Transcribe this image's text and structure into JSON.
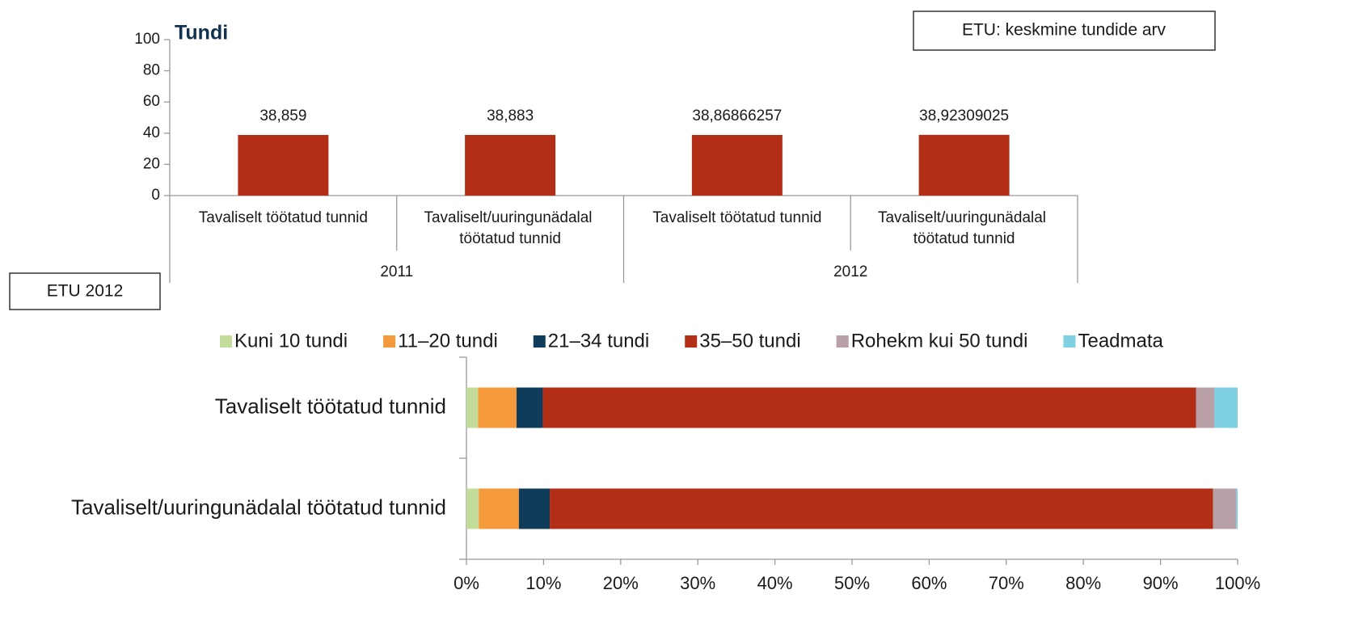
{
  "chart_data": [
    {
      "type": "bar",
      "annotation": "ETU: keskmine tundide arv",
      "ylabel": "Tundi",
      "categories": [
        "Tavaliselt töötatud tunnid",
        "Tavaliselt/uuringunädalal töötatud tunnid",
        "Tavaliselt töötatud tunnid",
        "Tavaliselt/uuringunädalal töötatud tunnid"
      ],
      "groups": [
        "2011",
        "2012"
      ],
      "values": [
        38.859,
        38.883,
        38.86866257,
        38.92309025
      ],
      "value_labels": [
        "38,859",
        "38,883",
        "38,86866257",
        "38,92309025"
      ],
      "color": "#b22e17",
      "ylim": [
        0,
        100
      ],
      "yticks": [
        0,
        20,
        40,
        60,
        80,
        100
      ]
    },
    {
      "type": "stacked-barh",
      "annotation": "ETU 2012",
      "categories": [
        "Tavaliselt töötatud tunnid",
        "Tavaliselt/uuringunädalal töötatud tunnid"
      ],
      "series": [
        {
          "name": "Kuni 10 tundi",
          "color": "#c3dc9a",
          "values": [
            1.5,
            1.6
          ]
        },
        {
          "name": "11–20 tundi",
          "color": "#f59a3a",
          "values": [
            5.0,
            5.2
          ]
        },
        {
          "name": "21–34 tundi",
          "color": "#0e3c5a",
          "values": [
            3.4,
            4.0
          ]
        },
        {
          "name": "35–50 tundi",
          "color": "#b22e17",
          "values": [
            84.7,
            86.0
          ]
        },
        {
          "name": "Rohekm kui 50 tundi",
          "color": "#b9a0a6",
          "values": [
            2.4,
            3.0
          ]
        },
        {
          "name": "Teadmata",
          "color": "#7fd0e0",
          "values": [
            3.0,
            0.2
          ]
        }
      ],
      "xlim": [
        0,
        100
      ],
      "xticks": [
        {
          "value": 0,
          "label": "0%"
        },
        {
          "value": 10,
          "label": "10%"
        },
        {
          "value": 20,
          "label": "20%"
        },
        {
          "value": 30,
          "label": "30%"
        },
        {
          "value": 40,
          "label": "40%"
        },
        {
          "value": 50,
          "label": "50%"
        },
        {
          "value": 60,
          "label": "60%"
        },
        {
          "value": 70,
          "label": "70%"
        },
        {
          "value": 80,
          "label": "80%"
        },
        {
          "value": 90,
          "label": "90%"
        },
        {
          "value": 100,
          "label": "100%"
        }
      ]
    }
  ]
}
